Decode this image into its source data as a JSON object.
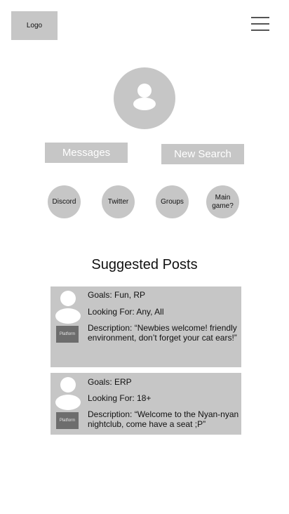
{
  "header": {
    "logo_text": "Logo",
    "menu_icon": "hamburger-menu-icon"
  },
  "profile": {
    "avatar_icon": "user-avatar-icon",
    "messages_label": "Messages",
    "new_search_label": "New Search"
  },
  "links": [
    {
      "label": "Discord"
    },
    {
      "label": "Twitter"
    },
    {
      "label": "Groups"
    },
    {
      "label": "Main game?"
    }
  ],
  "suggested": {
    "title": "Suggested Posts",
    "posts": [
      {
        "goals": "Goals: Fun, RP",
        "looking_for": "Looking For: Any, All",
        "description": "Description: “Newbies welcome! friendly environment, don’t forget your cat ears!”",
        "platform": "Platform"
      },
      {
        "goals": "Goals: ERP",
        "looking_for": "Looking For: 18+",
        "description": "Description: “Welcome to the Nyan-nyan nightclub, come have a seat ;P”",
        "platform": "Platform"
      }
    ]
  },
  "colors": {
    "placeholder_gray": "#c6c6c6",
    "platform_gray": "#6d6d6d",
    "background": "#ffffff"
  }
}
